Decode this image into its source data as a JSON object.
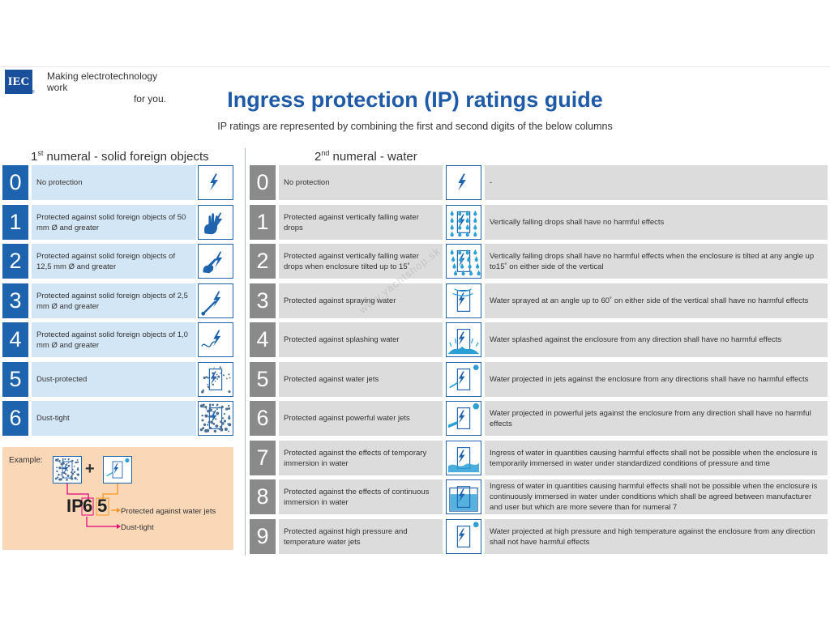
{
  "header": {
    "logo_text": "IEC",
    "logo_registered": "®",
    "tagline_line1": "Making  electrotechnology work",
    "tagline_line2": "for you."
  },
  "title": "Ingress protection (IP) ratings guide",
  "subtitle": "IP ratings are represented by combining the first and second digits of the below columns",
  "column1": {
    "heading_prefix": "1",
    "heading_sup": "st",
    "heading_rest": " numeral - solid foreign objects",
    "rows": [
      {
        "num": "0",
        "desc": "No protection",
        "icon": "lightning-icon"
      },
      {
        "num": "1",
        "desc": "Protected against solid foreign objects of 50 mm Ø and greater",
        "icon": "hand-icon"
      },
      {
        "num": "2",
        "desc": "Protected against solid foreign objects of 12,5 mm Ø and greater",
        "icon": "finger-icon"
      },
      {
        "num": "3",
        "desc": "Protected against solid foreign objects of 2,5 mm Ø and greater",
        "icon": "tool-icon"
      },
      {
        "num": "4",
        "desc": "Protected against solid foreign objects of 1,0 mm Ø and greater",
        "icon": "wire-icon"
      },
      {
        "num": "5",
        "desc": "Dust-protected",
        "icon": "dust-icon"
      },
      {
        "num": "6",
        "desc": "Dust-tight",
        "icon": "dense-dust-icon"
      }
    ]
  },
  "column2": {
    "heading_prefix": "2",
    "heading_sup": "nd",
    "heading_rest": " numeral - water",
    "rows": [
      {
        "num": "0",
        "desc": "No protection",
        "icon": "lightning-icon",
        "effect": "-"
      },
      {
        "num": "1",
        "desc": "Protected against vertically falling water drops",
        "icon": "vertical-drops-icon",
        "effect": "Vertically falling drops shall have no harmful effects"
      },
      {
        "num": "2",
        "desc": "Protected against vertically falling water drops when enclosure tilted up to 15˚",
        "icon": "tilted-drops-icon",
        "effect": "Vertically falling drops shall have no harmful effects when the enclosure is tilted at any angle up to15˚ on either side of the vertical"
      },
      {
        "num": "3",
        "desc": "Protected against spraying water",
        "icon": "spray-icon",
        "effect": "Water sprayed at an angle up to 60˚ on either side of the vertical shall have no harmful effects"
      },
      {
        "num": "4",
        "desc": "Protected against splashing water",
        "icon": "splash-icon",
        "effect": "Water splashed against the enclosure from any direction shall have no harmful effects"
      },
      {
        "num": "5",
        "desc": "Protected against water jets",
        "icon": "water-jet-icon",
        "effect": "Water projected in jets against the enclosure from any directions shall have no harmful effects"
      },
      {
        "num": "6",
        "desc": "Protected against powerful water jets",
        "icon": "powerful-jet-icon",
        "effect": "Water projected in powerful jets against the enclosure from any direction shall have no harmful effects"
      },
      {
        "num": "7",
        "desc": "Protected against the effects of temporary immersion in water",
        "icon": "temporary-immersion-icon",
        "effect": "Ingress of water in quantities causing harmful effects shall not be possible when the enclosure is temporarily immersed in water under standardized conditions of pressure and time"
      },
      {
        "num": "8",
        "desc": "Protected against the effects of continuous immersion in water",
        "icon": "continuous-immersion-icon",
        "effect": "Ingress of water in quantities causing harmful effects shall not be possible when the enclosure is continuously immersed in water under conditions which shall be agreed between manufacturer and user but which are more severe than for numeral 7"
      },
      {
        "num": "9",
        "desc": "Protected against high pressure and temperature water jets",
        "icon": "high-pressure-jet-icon",
        "effect": "Water projected at high pressure and high temperature against the enclosure from any direction shall not have harmful effects"
      }
    ]
  },
  "example": {
    "label": "Example:",
    "plus": "+",
    "ip_prefix": "IP",
    "digit1": "6",
    "digit2": "5",
    "note_digit2": "Protected against water jets",
    "note_digit1": "Dust-tight",
    "arrow_color_orange": "#f7941d",
    "arrow_color_magenta": "#e4007c"
  },
  "watermark": "www.yachtshop.sk",
  "colors": {
    "brand_blue": "#1d63ae",
    "title_blue": "#1e5aa8",
    "solid_desc_bg": "#d3e6f6",
    "water_num_bg": "#8a8a8a",
    "water_desc_bg": "#dcdcdc",
    "example_bg": "#f9d7b7"
  }
}
